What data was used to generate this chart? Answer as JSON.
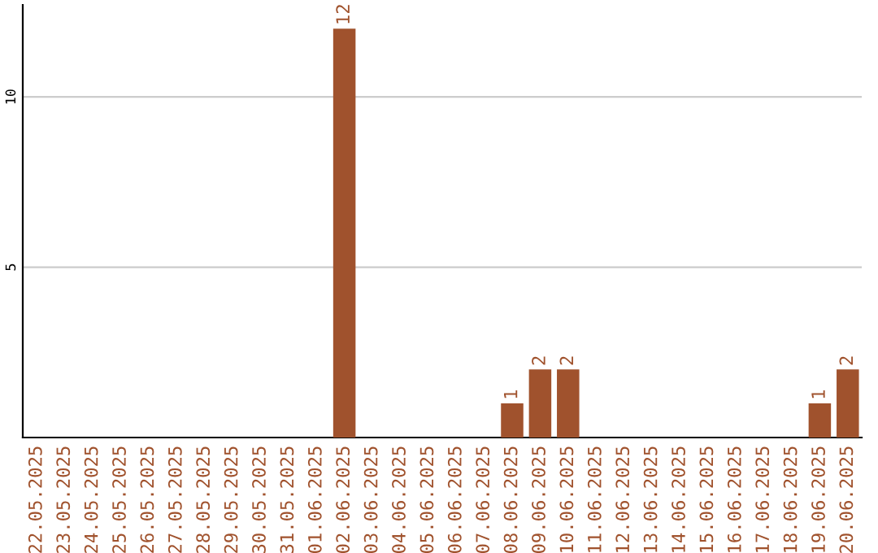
{
  "chart_data": {
    "type": "bar",
    "categories": [
      "22.05.2025",
      "23.05.2025",
      "24.05.2025",
      "25.05.2025",
      "26.05.2025",
      "27.05.2025",
      "28.05.2025",
      "29.05.2025",
      "30.05.2025",
      "31.05.2025",
      "01.06.2025",
      "02.06.2025",
      "03.06.2025",
      "04.06.2025",
      "05.06.2025",
      "06.06.2025",
      "07.06.2025",
      "08.06.2025",
      "09.06.2025",
      "10.06.2025",
      "11.06.2025",
      "12.06.2025",
      "13.06.2025",
      "14.06.2025",
      "15.06.2025",
      "16.06.2025",
      "17.06.2025",
      "18.06.2025",
      "19.06.2025",
      "20.06.2025"
    ],
    "values": [
      0,
      0,
      0,
      0,
      0,
      0,
      0,
      0,
      0,
      0,
      0,
      12,
      0,
      0,
      0,
      0,
      0,
      1,
      2,
      2,
      0,
      0,
      0,
      0,
      0,
      0,
      0,
      0,
      1,
      2
    ],
    "value_labels": [
      null,
      null,
      null,
      null,
      null,
      null,
      null,
      null,
      null,
      null,
      null,
      "12",
      null,
      null,
      null,
      null,
      null,
      "1",
      "2",
      "2",
      null,
      null,
      null,
      null,
      null,
      null,
      null,
      null,
      "1",
      "2"
    ],
    "color": "#a0522d",
    "ylim": [
      0,
      12.7
    ],
    "yticks": [
      5,
      10
    ],
    "grid": "y",
    "legend": false
  }
}
